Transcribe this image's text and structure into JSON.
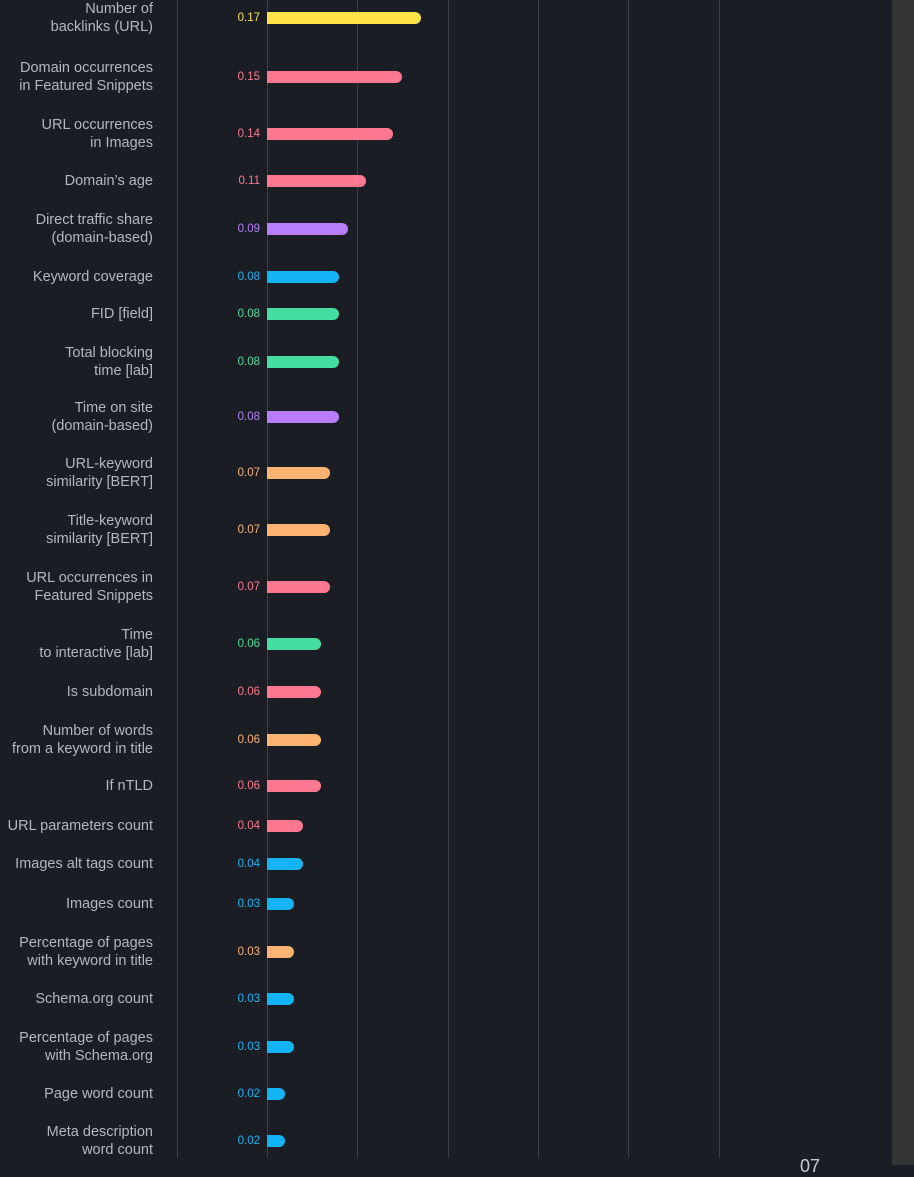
{
  "chart_data": {
    "type": "bar",
    "orientation": "horizontal",
    "xlim": [
      -0.1,
      0.5
    ],
    "grid": true,
    "categories": [
      "Number of\nbacklinks (URL)",
      "Domain occurrences\nin Featured Snippets",
      "URL occurrences\nin Images",
      "Domain’s age",
      "Direct traffic share\n(domain-based)",
      "Keyword coverage",
      "FID [field]",
      "Total blocking\ntime [lab]",
      "Time on site\n(domain-based)",
      "URL-keyword\nsimilarity [BERT]",
      "Title-keyword\nsimilarity [BERT]",
      "URL occurrences in\nFeatured Snippets",
      "Time\nto interactive [lab]",
      "Is subdomain",
      "Number of words\nfrom a keyword in title",
      "If nTLD",
      "URL parameters count",
      "Images alt tags count",
      "Images count",
      "Percentage of pages\nwith keyword in title",
      "Schema.org count",
      "Percentage of pages\nwith Schema.org",
      "Page word count",
      "Meta description\nword count"
    ],
    "values": [
      0.17,
      0.15,
      0.14,
      0.11,
      0.09,
      0.08,
      0.08,
      0.08,
      0.08,
      0.07,
      0.07,
      0.07,
      0.06,
      0.06,
      0.06,
      0.06,
      0.04,
      0.04,
      0.03,
      0.03,
      0.03,
      0.03,
      0.02,
      0.02
    ],
    "value_labels": [
      "0.17",
      "0.15",
      "0.14",
      "0.11",
      "0.09",
      "0.08",
      "0.08",
      "0.08",
      "0.08",
      "0.07",
      "0.07",
      "0.07",
      "0.06",
      "0.06",
      "0.06",
      "0.06",
      "0.04",
      "0.04",
      "0.03",
      "0.03",
      "0.03",
      "0.03",
      "0.02",
      "0.02"
    ],
    "groups": [
      "yellow",
      "pink",
      "pink",
      "pink",
      "purple",
      "blue",
      "green",
      "green",
      "purple",
      "orange",
      "orange",
      "pink",
      "green",
      "pink",
      "orange",
      "pink",
      "pink",
      "blue",
      "blue",
      "orange",
      "blue",
      "blue",
      "blue",
      "blue"
    ],
    "colors": {
      "yellow": "#ffe347",
      "pink": "#ff7890",
      "purple": "#b77dfb",
      "blue": "#12b4f4",
      "green": "#45dea0",
      "orange": "#ffb373"
    }
  },
  "page_number": "07"
}
